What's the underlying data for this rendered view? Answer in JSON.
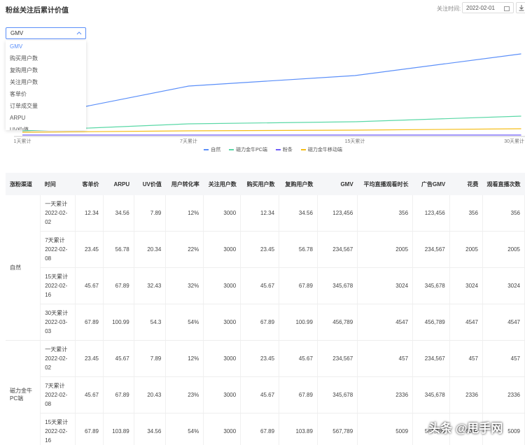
{
  "header": {
    "title": "粉丝关注后累计价值",
    "date_label": "关注时间:",
    "date": "2022-02-01"
  },
  "dropdown": {
    "selected": "GMV",
    "options": [
      "GMV",
      "购买用户数",
      "复购用户数",
      "关注用户数",
      "客单价",
      "订单成交量",
      "ARPU",
      "UV价值"
    ]
  },
  "chart_data": {
    "type": "line",
    "categories": [
      "1天累计",
      "7天累计",
      "15天累计",
      "30天累计"
    ],
    "series": [
      {
        "name": "自然",
        "color": "#5b8ff9",
        "values": [
          100000,
          288000,
          348000,
          472000
        ]
      },
      {
        "name": "磁力金牛PC端",
        "color": "#5ad8a6",
        "values": [
          32000,
          72000,
          84000,
          116000
        ]
      },
      {
        "name": "粉条",
        "color": "#6f5ef9",
        "values": [
          8000,
          8000,
          8000,
          8000
        ]
      },
      {
        "name": "磁力金牛移动端",
        "color": "#f6bd16",
        "values": [
          24000,
          32000,
          36000,
          44000
        ]
      }
    ]
  },
  "table": {
    "columns": [
      "涨粉渠道",
      "时间",
      "客单价",
      "ARPU",
      "UV价值",
      "用户转化率",
      "关注用户数",
      "购买用户数",
      "复购用户数",
      "GMV",
      "平均直播观看时长",
      "广告GMV",
      "花费",
      "观看直播次数"
    ],
    "groups": [
      {
        "channel": "自然",
        "rows": [
          {
            "period": "一天累计",
            "date": "2022-02-02",
            "cells": [
              "12.34",
              "34.56",
              "7.89",
              "12%",
              "3000",
              "12.34",
              "34.56",
              "123,456",
              "356",
              "123,456",
              "356",
              "356"
            ]
          },
          {
            "period": "7天累计",
            "date": "2022-02-08",
            "cells": [
              "23.45",
              "56.78",
              "20.34",
              "22%",
              "3000",
              "23.45",
              "56.78",
              "234,567",
              "2005",
              "234,567",
              "2005",
              "2005"
            ]
          },
          {
            "period": "15天累计",
            "date": "2022-02-16",
            "cells": [
              "45.67",
              "67.89",
              "32.43",
              "32%",
              "3000",
              "45.67",
              "67.89",
              "345,678",
              "3024",
              "345,678",
              "3024",
              "3024"
            ]
          },
          {
            "period": "30天累计",
            "date": "2022-03-03",
            "cells": [
              "67.89",
              "100.99",
              "54.3",
              "54%",
              "3000",
              "67.89",
              "100.99",
              "456,789",
              "4547",
              "456,789",
              "4547",
              "4547"
            ]
          }
        ]
      },
      {
        "channel": "磁力金牛PC端",
        "rows": [
          {
            "period": "一天累计",
            "date": "2022-02-02",
            "cells": [
              "23.45",
              "45.67",
              "7.89",
              "12%",
              "3000",
              "23.45",
              "45.67",
              "234,567",
              "457",
              "234,567",
              "457",
              "457"
            ]
          },
          {
            "period": "7天累计",
            "date": "2022-02-08",
            "cells": [
              "45.67",
              "67.89",
              "20.43",
              "23%",
              "3000",
              "45.67",
              "67.89",
              "345,678",
              "2336",
              "345,678",
              "2336",
              "2336"
            ]
          },
          {
            "period": "15天累计",
            "date": "2022-02-16",
            "cells": [
              "67.89",
              "103.89",
              "34.56",
              "54%",
              "3000",
              "67.89",
              "103.89",
              "567,789",
              "5009",
              "567,789",
              "5009",
              "5009"
            ]
          }
        ]
      }
    ]
  },
  "watermark": "头条 @甩手网"
}
